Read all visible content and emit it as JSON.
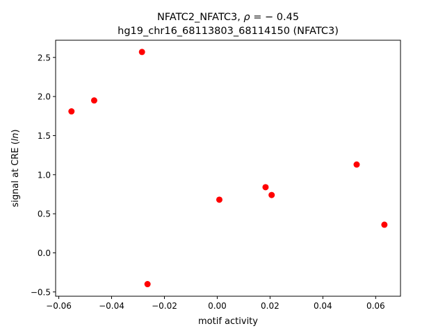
{
  "chart_data": {
    "type": "scatter",
    "title_line1_prefix": "NFATC2_NFATC3, ",
    "title_line1_rho": "ρ",
    "title_line1_suffix": " = − 0.45",
    "title_line2": "hg19_chr16_68113803_68114150 (NFATC3)",
    "xlabel": "motif activity",
    "ylabel_prefix": "signal at CRE (",
    "ylabel_italic": "ln",
    "ylabel_suffix": ")",
    "xlim": [
      -0.0612,
      0.0694
    ],
    "ylim": [
      -0.555,
      2.72
    ],
    "xticks": [
      -0.06,
      -0.04,
      -0.02,
      0.0,
      0.02,
      0.04,
      0.06
    ],
    "xtick_labels": [
      "−0.06",
      "−0.04",
      "−0.02",
      "0.00",
      "0.02",
      "0.04",
      "0.06"
    ],
    "yticks": [
      -0.5,
      0.0,
      0.5,
      1.0,
      1.5,
      2.0,
      2.5
    ],
    "ytick_labels": [
      "−0.5",
      "0.0",
      "0.5",
      "1.0",
      "1.5",
      "2.0",
      "2.5"
    ],
    "point_color": "#ff0000",
    "points": [
      {
        "x": -0.0552,
        "y": 1.81
      },
      {
        "x": -0.0466,
        "y": 1.95
      },
      {
        "x": -0.0285,
        "y": 2.57
      },
      {
        "x": -0.0264,
        "y": -0.4
      },
      {
        "x": 0.0008,
        "y": 0.68
      },
      {
        "x": 0.0183,
        "y": 0.84
      },
      {
        "x": 0.0206,
        "y": 0.74
      },
      {
        "x": 0.0528,
        "y": 1.13
      },
      {
        "x": 0.0633,
        "y": 0.36
      }
    ]
  }
}
